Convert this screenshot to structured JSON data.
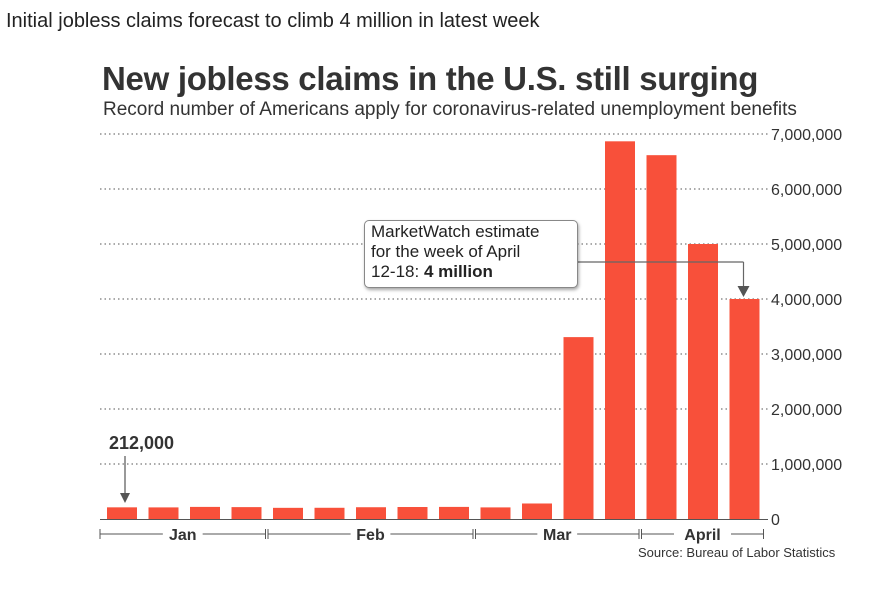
{
  "headline": "Initial jobless claims forecast to climb 4 million in latest week",
  "source": "Source: Bureau of Labor Statistics",
  "colors": {
    "bar": "#f8503a",
    "grid": "#777777",
    "text": "#333333"
  },
  "chart_data": {
    "type": "bar",
    "title": "New jobless claims in the U.S. still surging",
    "subtitle": "Record number of Americans apply for coronavirus-related unemployment benefits",
    "xlabel": "",
    "ylabel": "",
    "ylim": [
      0,
      7000000
    ],
    "yticks": [
      0,
      1000000,
      2000000,
      3000000,
      4000000,
      5000000,
      6000000,
      7000000
    ],
    "ytick_labels": [
      "0",
      "1,000,000",
      "2,000,000",
      "3,000,000",
      "4,000,000",
      "5,000,000",
      "6,000,000",
      "7,000,000"
    ],
    "grid": true,
    "values": [
      212000,
      211000,
      220000,
      216000,
      203000,
      204000,
      214000,
      218000,
      220000,
      211000,
      282000,
      3307000,
      6867000,
      6615000,
      5000000,
      4000000
    ],
    "month_groups": [
      {
        "label": "Jan",
        "first_bar": 0,
        "last_bar": 3
      },
      {
        "label": "Feb",
        "first_bar": 4,
        "last_bar": 8
      },
      {
        "label": "Mar",
        "first_bar": 9,
        "last_bar": 12
      },
      {
        "label": "April",
        "first_bar": 13,
        "last_bar": 15
      }
    ],
    "annotations": {
      "first_bar_label": "212,000",
      "estimate_line1": "MarketWatch estimate",
      "estimate_line2": "for the week of April",
      "estimate_line3_prefix": "12-18: ",
      "estimate_line3_value": "4 million"
    }
  }
}
